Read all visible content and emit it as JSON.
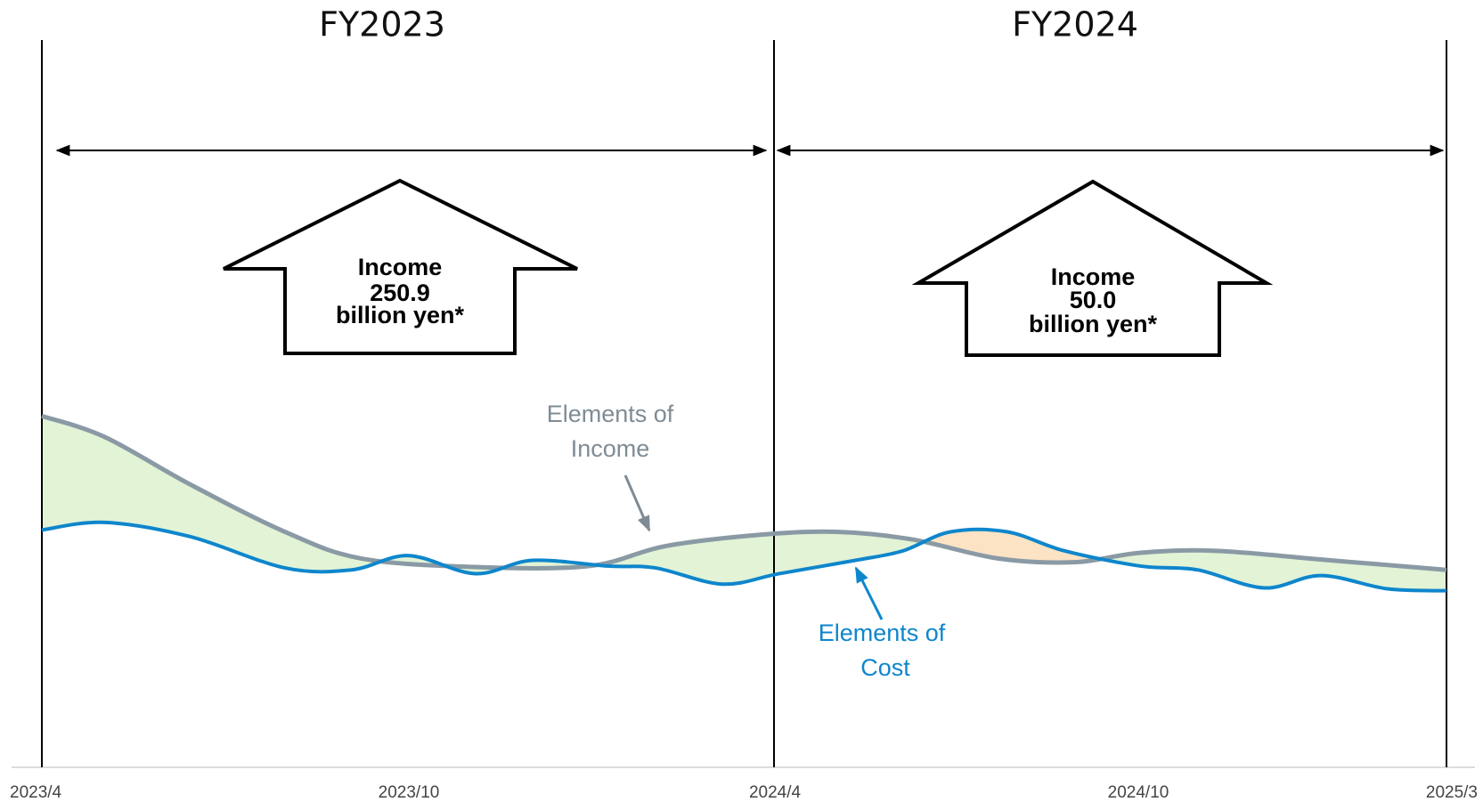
{
  "periods": [
    {
      "title": "FY2023",
      "arrow": {
        "lines": [
          "Income",
          "250.9",
          "billion yen*"
        ]
      }
    },
    {
      "title": "FY2024",
      "arrow": {
        "lines": [
          "Income",
          "50.0",
          "billion yen*"
        ]
      }
    }
  ],
  "curves": {
    "income": {
      "lines": [
        "Elements of",
        "Income"
      ]
    },
    "cost": {
      "lines": [
        "Elements of",
        "Cost"
      ]
    }
  },
  "axis": {
    "labels": [
      "2023/4",
      "2023/10",
      "2024/4",
      "2024/10",
      "2025/3"
    ]
  }
}
